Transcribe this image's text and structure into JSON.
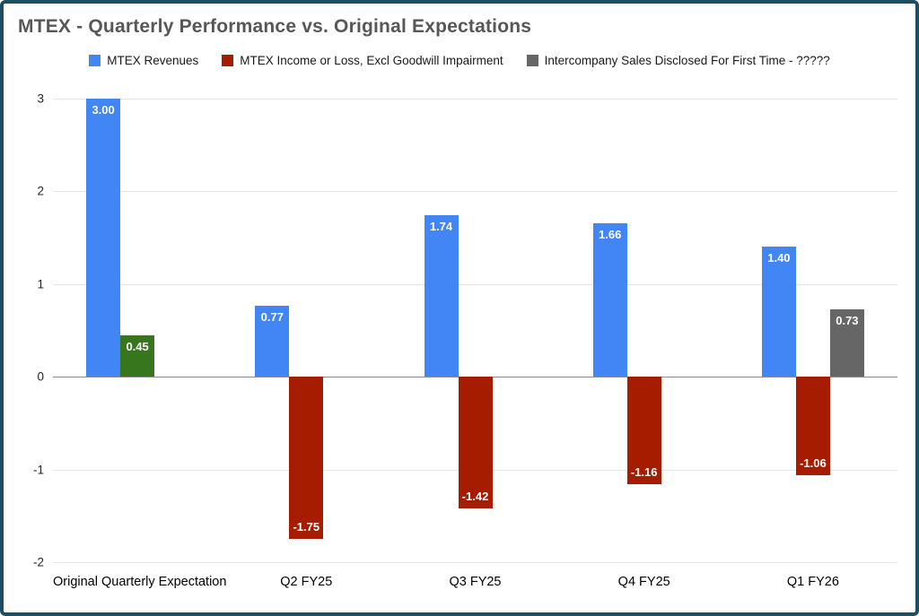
{
  "title": "MTEX - Quarterly Performance vs. Original Expectations",
  "chart_data": {
    "type": "bar",
    "title": "MTEX - Quarterly Performance vs. Original Expectations",
    "categories": [
      "Original Quarterly Expectation",
      "Q2 FY25",
      "Q3 FY25",
      "Q4 FY25",
      "Q1 FY26"
    ],
    "series": [
      {
        "name": "MTEX Revenues",
        "color": "#4285f4",
        "values": [
          3.0,
          0.77,
          1.74,
          1.66,
          1.4
        ],
        "labels": [
          "3.00",
          "0.77",
          "1.74",
          "1.66",
          "1.40"
        ]
      },
      {
        "name": "MTEX Income or Loss, Excl Goodwill Impairment",
        "color": "#a61c00",
        "point_colors": [
          "#38761d",
          null,
          null,
          null,
          null
        ],
        "values": [
          0.45,
          -1.75,
          -1.42,
          -1.16,
          -1.06
        ],
        "labels": [
          "0.45",
          "-1.75",
          "-1.42",
          "-1.16",
          "-1.06"
        ]
      },
      {
        "name": "Intercompany Sales Disclosed For First Time - ?????",
        "color": "#666666",
        "values": [
          null,
          null,
          null,
          null,
          0.73
        ],
        "labels": [
          null,
          null,
          null,
          null,
          "0.73"
        ]
      }
    ],
    "ylim": [
      -2,
      3
    ],
    "yticks": [
      3,
      2,
      1,
      0,
      -1,
      -2
    ],
    "grid": true,
    "legend_position": "top",
    "xlabel": "",
    "ylabel": "",
    "colors": {
      "gridline": "#e6e6e6",
      "zero_line": "#8a8a8a",
      "bar_value_text": "#ffffff",
      "frame_border": "#1d4e63",
      "title_text": "#575757"
    }
  }
}
